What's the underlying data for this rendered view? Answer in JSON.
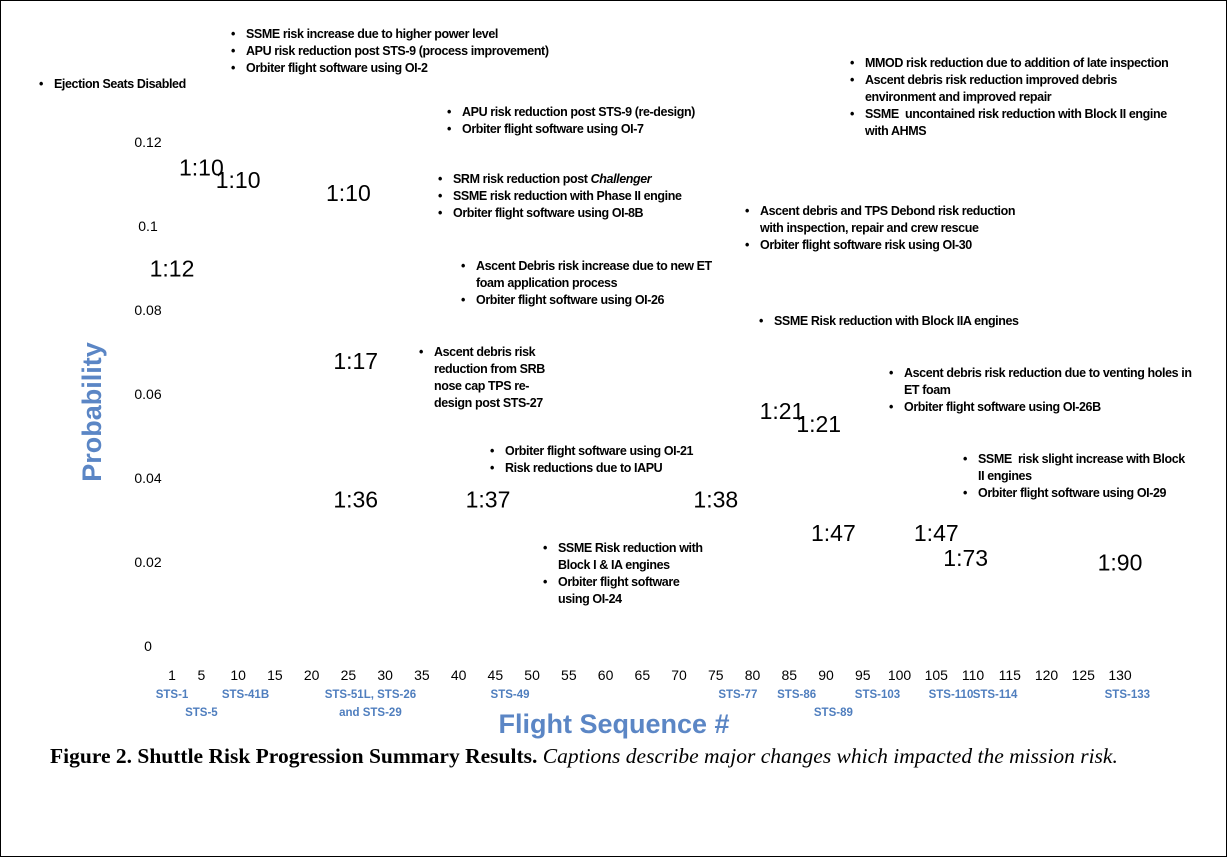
{
  "chart_data": {
    "type": "scatter",
    "xlabel": "Flight Sequence #",
    "ylabel": "Probability",
    "xlim": [
      0,
      135
    ],
    "ylim": [
      0,
      0.12
    ],
    "x_ticks": [
      "1",
      "5",
      "10",
      "15",
      "20",
      "25",
      "30",
      "35",
      "40",
      "45",
      "50",
      "55",
      "60",
      "65",
      "70",
      "75",
      "80",
      "85",
      "90",
      "95",
      "100",
      "105",
      "110",
      "115",
      "120",
      "125",
      "130"
    ],
    "y_ticks": [
      "0",
      "0.02",
      "0.04",
      "0.06",
      "0.08",
      "0.1",
      "0.12"
    ],
    "grid": false,
    "legend": "none",
    "colors": {
      "axis_label": "#5b86c5",
      "flight_label": "#4f7ebe",
      "text": "#000000"
    },
    "risk_labels": [
      {
        "text": "1:10",
        "x": 5,
        "y": 0.112
      },
      {
        "text": "1:10",
        "x": 10,
        "y": 0.109
      },
      {
        "text": "1:10",
        "x": 25,
        "y": 0.106
      },
      {
        "text": "1:12",
        "x": 1,
        "y": 0.088
      },
      {
        "text": "1:17",
        "x": 26,
        "y": 0.066
      },
      {
        "text": "1:21",
        "x": 84,
        "y": 0.054
      },
      {
        "text": "1:21",
        "x": 89,
        "y": 0.051
      },
      {
        "text": "1:36",
        "x": 26,
        "y": 0.033
      },
      {
        "text": "1:37",
        "x": 44,
        "y": 0.033
      },
      {
        "text": "1:38",
        "x": 75,
        "y": 0.033
      },
      {
        "text": "1:47",
        "x": 91,
        "y": 0.025
      },
      {
        "text": "1:47",
        "x": 105,
        "y": 0.025
      },
      {
        "text": "1:73",
        "x": 109,
        "y": 0.019
      },
      {
        "text": "1:90",
        "x": 130,
        "y": 0.018
      }
    ],
    "flight_labels": [
      {
        "text": "STS-1",
        "x": 1,
        "row": 1
      },
      {
        "text": "STS-5",
        "x": 5,
        "row": 2
      },
      {
        "text": "STS-41B",
        "x": 11,
        "row": 1
      },
      {
        "text": "STS-51L, STS-26",
        "x": 28,
        "row": 1
      },
      {
        "text": "and STS-29",
        "x": 28,
        "row": 2
      },
      {
        "text": "STS-49",
        "x": 47,
        "row": 1
      },
      {
        "text": "STS-77",
        "x": 78,
        "row": 1
      },
      {
        "text": "STS-86",
        "x": 86,
        "row": 1
      },
      {
        "text": "STS-89",
        "x": 91,
        "row": 2
      },
      {
        "text": "STS-103",
        "x": 97,
        "row": 1
      },
      {
        "text": "STS-110",
        "x": 107,
        "row": 1
      },
      {
        "text": "STS-114",
        "x": 113,
        "row": 1
      },
      {
        "text": "STS-133",
        "x": 131,
        "row": 1
      }
    ]
  },
  "annotations": {
    "a1": {
      "lines": [
        "Ejection Seats Disabled"
      ]
    },
    "a2": {
      "lines": [
        "SSME risk increase due to higher power level",
        "APU risk reduction post STS-9 (process improvement)",
        "Orbiter flight software using OI-2"
      ]
    },
    "a3": {
      "lines": [
        "APU risk reduction post STS-9 (re-design)",
        "Orbiter flight software using OI-7"
      ]
    },
    "a4": {
      "line1": "SRM risk reduction post ",
      "line1_italic": "Challenger",
      "lines": [
        "SSME risk reduction with Phase II engine",
        "Orbiter flight software using OI-8B"
      ]
    },
    "a5": {
      "line1a": "Ascent Debris risk increase due to new ET",
      "line1b": "foam application process",
      "line2": "Orbiter flight software using OI-26"
    },
    "a6": {
      "line1": "Ascent debris risk",
      "cont": [
        "reduction from SRB",
        "nose cap TPS re-",
        "design post STS-27"
      ]
    },
    "a7": {
      "lines": [
        "Orbiter flight software using OI-21",
        "Risk reductions due to IAPU"
      ]
    },
    "a8": {
      "line1a": "SSME Risk reduction with",
      "line1b": "Block I & IA engines",
      "line2a": "Orbiter flight software",
      "line2b": "using OI-24"
    },
    "a9": {
      "line1": "MMOD risk reduction due to addition of late inspection",
      "line2a": "Ascent debris risk reduction improved debris",
      "line2b": "environment and improved repair",
      "line3a": "SSME  uncontained risk reduction with Block II engine",
      "line3b": "with AHMS"
    },
    "a10": {
      "line1a": "Ascent debris and TPS Debond risk reduction",
      "line1b": "with inspection, repair and crew rescue",
      "line2": "Orbiter flight software risk using OI-30"
    },
    "a11": {
      "lines": [
        "SSME Risk reduction with Block IIA engines"
      ]
    },
    "a12": {
      "line1a": "Ascent debris risk reduction due to venting holes in",
      "line1b": "ET foam",
      "line2": "Orbiter flight software using OI-26B"
    },
    "a13": {
      "line1a": "SSME  risk slight increase with Block",
      "line1b": "II engines",
      "line2": "Orbiter flight software using OI-29"
    }
  },
  "caption": {
    "bold": "Figure 2. Shuttle Risk Progression Summary Results.",
    "italic": "Captions describe major changes which impacted the mission risk."
  }
}
